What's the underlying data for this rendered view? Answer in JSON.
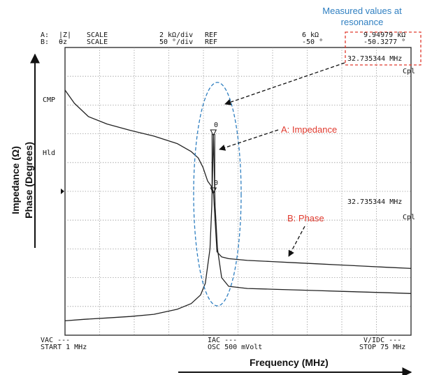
{
  "header": {
    "a_channel": "A:",
    "a_param": "|Z|",
    "a_scale_word": "SCALE",
    "a_scale_value": "2 kΩ/div",
    "a_ref_word": "REF",
    "a_ref_value": "6 kΩ",
    "a_marker_value": "9.94979 kΩ",
    "b_channel": "B:",
    "b_param": "θz",
    "b_scale_word": "SCALE",
    "b_scale_value": "50 °/div",
    "b_ref_word": "REF",
    "b_ref_value": "-50 °",
    "b_marker_value": "-50.3277 °"
  },
  "marker_readout": {
    "frequency_top": "32.735344 MHz",
    "mode_top": "Cpl",
    "frequency_mid": "32.735344 MHz",
    "mode_mid": "Cpl"
  },
  "side_labels": {
    "cmp": "CMP",
    "hld": "Hld"
  },
  "footer": {
    "vac": "VAC ---",
    "start": "START 1 MHz",
    "iac": "IAC ---",
    "osc": "OSC 500 mVolt",
    "vidc": "V/IDC ---",
    "stop": "STOP 75 MHz"
  },
  "annotations": {
    "measured": "Measured values at resonance",
    "impedance": "A: Impedance",
    "phase": "B: Phase",
    "y_axis_line1": "Impedance (Ω)",
    "y_axis_line2": "Phase (Degrees)",
    "x_axis": "Frequency (MHz)",
    "marker_symbol": "0"
  },
  "colors": {
    "annotation_blue": "#2f7fc1",
    "annotation_red": "#e03a2e",
    "trace": "#222222",
    "grid": "#888888"
  },
  "chart_data": {
    "type": "line",
    "title": "",
    "xlabel": "Frequency (MHz)",
    "ylabel": "Impedance (Ω) / Phase (Degrees)",
    "xlim": [
      1,
      75
    ],
    "x_ticks_printed": [
      "START 1 MHz",
      "STOP 75 MHz"
    ],
    "grid": true,
    "grid_divisions": {
      "x": 10,
      "y": 10
    },
    "resonance_frequency_mhz": 32.735344,
    "series": [
      {
        "name": "A: Impedance",
        "unit": "kΩ",
        "scale_per_div": 2,
        "ref": 6,
        "ylim": [
          -4,
          16
        ],
        "marker_value": 9.94979,
        "x": [
          1,
          5,
          10,
          15,
          20,
          25,
          28,
          30,
          31,
          32,
          32.4,
          32.735344,
          33.1,
          33.6,
          34.5,
          36,
          40,
          45,
          50,
          55,
          60,
          65,
          70,
          75
        ],
        "y": [
          -3.0,
          -2.9,
          -2.8,
          -2.7,
          -2.55,
          -2.2,
          -1.8,
          -1.2,
          -0.4,
          2.0,
          5.0,
          9.95,
          5.0,
          2.0,
          0.0,
          -0.6,
          -0.75,
          -0.8,
          -0.85,
          -0.9,
          -0.95,
          -1.0,
          -1.05,
          -1.1
        ]
      },
      {
        "name": "B: Phase",
        "unit": "°",
        "scale_per_div": 50,
        "ref": -50,
        "ylim": [
          -300,
          200
        ],
        "marker_value": -50.3277,
        "x": [
          1,
          3,
          6,
          10,
          15,
          20,
          25,
          28,
          29.5,
          30.5,
          31.5,
          32.2,
          32.735344,
          33.1,
          33.5,
          34.5,
          36,
          40,
          45,
          50,
          55,
          60,
          65,
          70,
          75
        ],
        "y": [
          126,
          103,
          80,
          67,
          56,
          46,
          33,
          19,
          8,
          -8,
          -32,
          -40,
          -50.3,
          -100,
          -155,
          -164,
          -167,
          -170,
          -172,
          -174,
          -176,
          -178,
          -180,
          -182,
          -184
        ]
      }
    ]
  }
}
